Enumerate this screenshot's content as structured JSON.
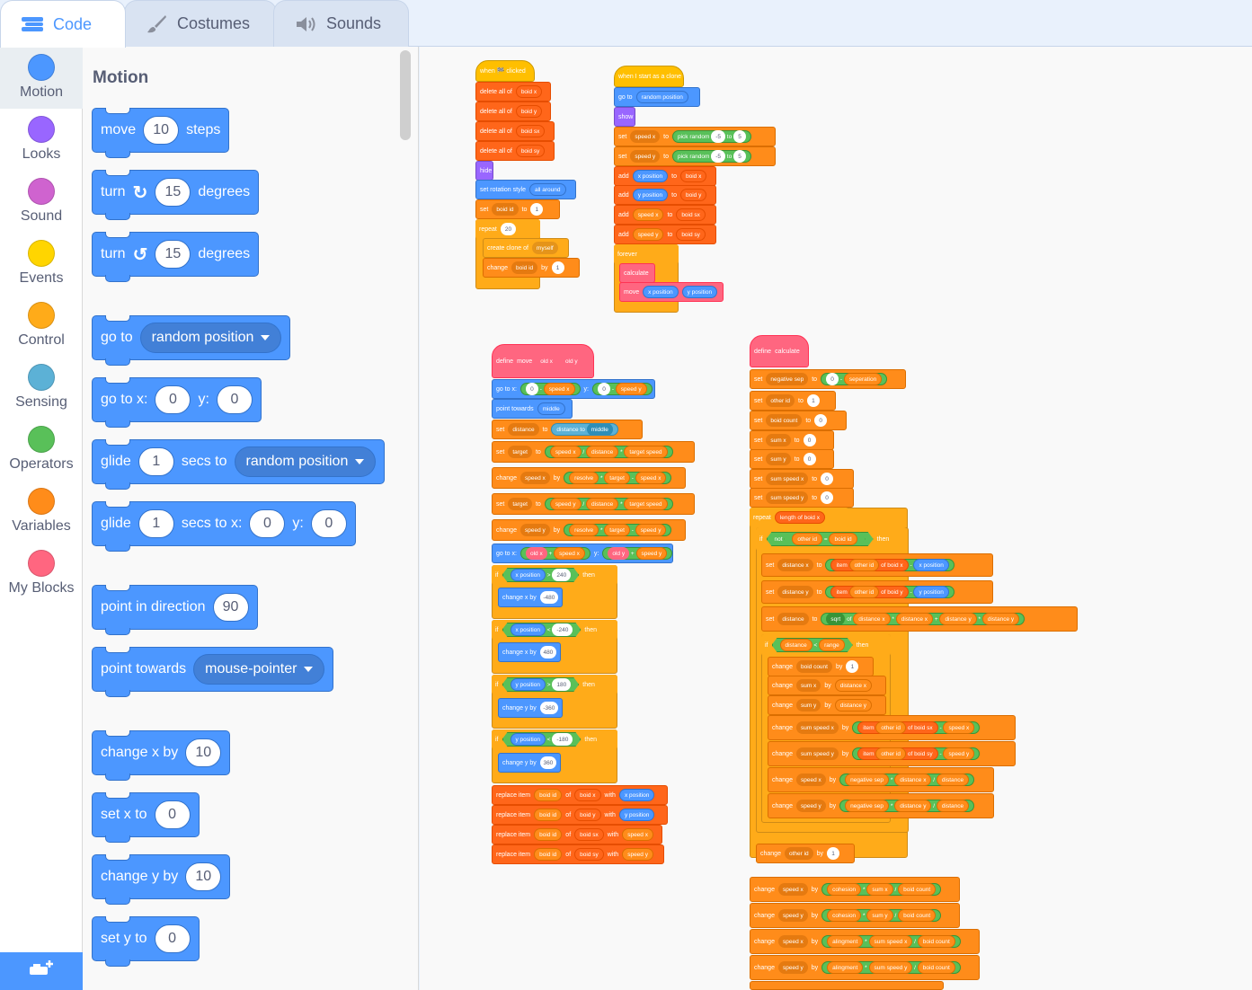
{
  "tabs": [
    {
      "label": "Code",
      "icon": "code-icon"
    },
    {
      "label": "Costumes",
      "icon": "brush-icon"
    },
    {
      "label": "Sounds",
      "icon": "speaker-icon"
    }
  ],
  "categories": [
    {
      "label": "Motion",
      "color": "#4c97ff"
    },
    {
      "label": "Looks",
      "color": "#9966ff"
    },
    {
      "label": "Sound",
      "color": "#cf63cf"
    },
    {
      "label": "Events",
      "color": "#ffd500"
    },
    {
      "label": "Control",
      "color": "#ffab19"
    },
    {
      "label": "Sensing",
      "color": "#5cb1d6"
    },
    {
      "label": "Operators",
      "color": "#59c059"
    },
    {
      "label": "Variables",
      "color": "#ff8c1a"
    },
    {
      "label": "My Blocks",
      "color": "#ff6680"
    }
  ],
  "palette": {
    "title": "Motion",
    "move": {
      "a": "move",
      "v": "10",
      "b": "steps"
    },
    "turn_right": {
      "a": "turn",
      "v": "15",
      "b": "degrees"
    },
    "turn_left": {
      "a": "turn",
      "v": "15",
      "b": "degrees"
    },
    "goto": {
      "a": "go to",
      "dd": "random position"
    },
    "goto_xy": {
      "a": "go to x:",
      "x": "0",
      "b": "y:",
      "y": "0"
    },
    "glide_to": {
      "a": "glide",
      "v": "1",
      "b": "secs to",
      "dd": "random position"
    },
    "glide_xy": {
      "a": "glide",
      "v": "1",
      "b": "secs to x:",
      "x": "0",
      "c": "y:",
      "y": "0"
    },
    "point_dir": {
      "a": "point in direction",
      "v": "90"
    },
    "point_towards": {
      "a": "point towards",
      "dd": "mouse-pointer"
    },
    "change_x": {
      "a": "change x by",
      "v": "10"
    },
    "set_x": {
      "a": "set x to",
      "v": "0"
    },
    "change_y": {
      "a": "change y by",
      "v": "10"
    },
    "set_y": {
      "a": "set y to",
      "v": "0"
    }
  },
  "scripts": {
    "flag": {
      "hat": "when 🏁 clicked",
      "delete": [
        {
          "a": "delete all of",
          "l": "boid x"
        },
        {
          "a": "delete all of",
          "l": "boid y"
        },
        {
          "a": "delete all of",
          "l": "boid sx"
        },
        {
          "a": "delete all of",
          "l": "boid sy"
        }
      ],
      "hide": "hide",
      "rot": {
        "a": "set rotation style",
        "dd": "all around"
      },
      "set_id": {
        "a": "set",
        "v": "boid id",
        "b": "to",
        "n": "1"
      },
      "repeat": {
        "a": "repeat",
        "n": "20"
      },
      "clone": {
        "a": "create clone of",
        "dd": "myself"
      },
      "change_id": {
        "a": "change",
        "v": "boid id",
        "b": "by",
        "n": "1"
      }
    },
    "clone": {
      "hat": "when I start as a clone",
      "goto": {
        "a": "go to",
        "dd": "random position"
      },
      "show": "show",
      "sx": {
        "a": "set",
        "v": "speed x",
        "b": "to",
        "r": "pick random",
        "lo": "-5",
        "to": "to",
        "hi": "5"
      },
      "sy": {
        "a": "set",
        "v": "speed y",
        "b": "to",
        "r": "pick random",
        "lo": "-5",
        "to": "to",
        "hi": "5"
      },
      "adds": [
        {
          "a": "add",
          "p": "x position",
          "b": "to",
          "l": "boid x"
        },
        {
          "a": "add",
          "p": "y position",
          "b": "to",
          "l": "boid y"
        },
        {
          "a": "add",
          "p": "speed x",
          "b": "to",
          "l": "boid sx"
        },
        {
          "a": "add",
          "p": "speed y",
          "b": "to",
          "l": "boid sy"
        }
      ],
      "forever": "forever",
      "calc": "calculate",
      "move": {
        "a": "move",
        "x": "x position",
        "y": "y position"
      }
    },
    "def_move": {
      "hat": {
        "a": "define",
        "b": "move",
        "x": "old x",
        "y": "old y"
      },
      "goto1": {
        "a": "go to x:",
        "n0": "0",
        "m": "-",
        "sx": "speed x",
        "b": "y:",
        "n1": "0",
        "m2": "-",
        "sy": "speed y"
      },
      "point": {
        "a": "point towards",
        "dd": "middle"
      },
      "dist": {
        "a": "set",
        "v": "distance",
        "b": "to",
        "s": "distance to",
        "dd": "middle"
      },
      "tgt1": {
        "a": "set",
        "v": "target",
        "b": "to",
        "p1": "speed x",
        "d": "/",
        "p2": "distance",
        "m": "*",
        "p3": "target speed"
      },
      "chg1": {
        "a": "change",
        "v": "speed x",
        "b": "by",
        "p1": "resolve",
        "m": "*",
        "p2": "target",
        "mi": "-",
        "p3": "speed x"
      },
      "tgt2": {
        "a": "set",
        "v": "target",
        "b": "to",
        "p1": "speed y",
        "d": "/",
        "p2": "distance",
        "m": "*",
        "p3": "target speed"
      },
      "chg2": {
        "a": "change",
        "v": "speed y",
        "b": "by",
        "p1": "resolve",
        "m": "*",
        "p2": "target",
        "mi": "-",
        "p3": "speed y"
      },
      "goto2": {
        "a": "go to x:",
        "p1": "old x",
        "pl": "+",
        "p2": "speed x",
        "b": "y:",
        "p3": "old y",
        "pl2": "+",
        "p4": "speed y"
      },
      "ifs": [
        {
          "a": "if",
          "s": "x position",
          "op": ">",
          "n": "240",
          "t": "then",
          "body": "change x by",
          "bv": "-480"
        },
        {
          "a": "if",
          "s": "x position",
          "op": "<",
          "n": "-240",
          "t": "then",
          "body": "change x by",
          "bv": "480"
        },
        {
          "a": "if",
          "s": "y position",
          "op": ">",
          "n": "180",
          "t": "then",
          "body": "change y by",
          "bv": "-360"
        },
        {
          "a": "if",
          "s": "y position",
          "op": "<",
          "n": "-180",
          "t": "then",
          "body": "change y by",
          "bv": "360"
        }
      ],
      "replaces": [
        {
          "a": "replace item",
          "i": "boid id",
          "o": "of",
          "l": "boid x",
          "w": "with",
          "v": "x position",
          "c": "bl"
        },
        {
          "a": "replace item",
          "i": "boid id",
          "o": "of",
          "l": "boid y",
          "w": "with",
          "v": "y position",
          "c": "bl"
        },
        {
          "a": "replace item",
          "i": "boid id",
          "o": "of",
          "l": "boid sx",
          "w": "with",
          "v": "speed x",
          "c": "o"
        },
        {
          "a": "replace item",
          "i": "boid id",
          "o": "of",
          "l": "boid sy",
          "w": "with",
          "v": "speed y",
          "c": "o"
        }
      ]
    },
    "def_calc": {
      "hat": {
        "a": "define",
        "b": "calculate"
      },
      "sep": {
        "a": "set",
        "v": "negative sep",
        "b": "to",
        "n": "0",
        "m": "-",
        "p": "seperation"
      },
      "sets": [
        {
          "a": "set",
          "v": "other id",
          "b": "to",
          "n": "1"
        },
        {
          "a": "set",
          "v": "boid count",
          "b": "to",
          "n": "0"
        },
        {
          "a": "set",
          "v": "sum x",
          "b": "to",
          "n": "0"
        },
        {
          "a": "set",
          "v": "sum y",
          "b": "to",
          "n": "0"
        },
        {
          "a": "set",
          "v": "sum speed x",
          "b": "to",
          "n": "0"
        },
        {
          "a": "set",
          "v": "sum speed y",
          "b": "to",
          "n": "0"
        }
      ],
      "repeat": {
        "a": "repeat",
        "p": "length of",
        "l": "boid x"
      },
      "if1": {
        "a": "if",
        "not": "not",
        "p1": "other id",
        "eq": "=",
        "p2": "boid id",
        "t": "then"
      },
      "dx": {
        "a": "set",
        "v": "distance x",
        "b": "to",
        "i": "item",
        "p": "other id",
        "o": "of",
        "l": "boid x",
        "m": "-",
        "s": "x position"
      },
      "dy": {
        "a": "set",
        "v": "distance y",
        "b": "to",
        "i": "item",
        "p": "other id",
        "o": "of",
        "l": "boid y",
        "m": "-",
        "s": "y position"
      },
      "dd": {
        "a": "set",
        "v": "distance",
        "b": "to",
        "f": "sqrt",
        "o": "of",
        "p1": "distance x",
        "m1": "*",
        "p2": "distance x",
        "pl": "+",
        "p3": "distance y",
        "m2": "*",
        "p4": "distance y"
      },
      "if2": {
        "a": "if",
        "p1": "distance",
        "lt": "<",
        "p2": "range",
        "t": "then"
      },
      "inner": [
        {
          "a": "change",
          "v": "boid count",
          "b": "by",
          "n": "1"
        },
        {
          "a": "change",
          "v": "sum x",
          "b": "by",
          "p": "distance x"
        },
        {
          "a": "change",
          "v": "sum y",
          "b": "by",
          "p": "distance y"
        }
      ],
      "ssx": {
        "a": "change",
        "v": "sum speed x",
        "b": "by",
        "i": "item",
        "p": "other id",
        "o": "of",
        "l": "boid sx",
        "m": "-",
        "s": "speed x"
      },
      "ssy": {
        "a": "change",
        "v": "sum speed y",
        "b": "by",
        "i": "item",
        "p": "other id",
        "o": "of",
        "l": "boid sy",
        "m": "-",
        "s": "speed y"
      },
      "csx": {
        "a": "change",
        "v": "speed x",
        "b": "by",
        "p1": "negative sep",
        "m": "*",
        "p2": "distance x",
        "d": "/",
        "p3": "distance"
      },
      "csy": {
        "a": "change",
        "v": "speed y",
        "b": "by",
        "p1": "negative sep",
        "m": "*",
        "p2": "distance y",
        "d": "/",
        "p3": "distance"
      },
      "other": {
        "a": "change",
        "v": "other id",
        "b": "by",
        "n": "1"
      },
      "tail": [
        {
          "a": "change",
          "v": "speed x",
          "b": "by",
          "p1": "cohesion",
          "m": "*",
          "p2": "sum x",
          "d": "/",
          "p3": "boid count"
        },
        {
          "a": "change",
          "v": "speed y",
          "b": "by",
          "p1": "cohesion",
          "m": "*",
          "p2": "sum y",
          "d": "/",
          "p3": "boid count"
        },
        {
          "a": "change",
          "v": "speed x",
          "b": "by",
          "p1": "alingment",
          "m": "*",
          "p2": "sum speed x",
          "d": "/",
          "p3": "boid count"
        },
        {
          "a": "change",
          "v": "speed y",
          "b": "by",
          "p1": "alingment",
          "m": "*",
          "p2": "sum speed y",
          "d": "/",
          "p3": "boid count"
        }
      ]
    }
  }
}
